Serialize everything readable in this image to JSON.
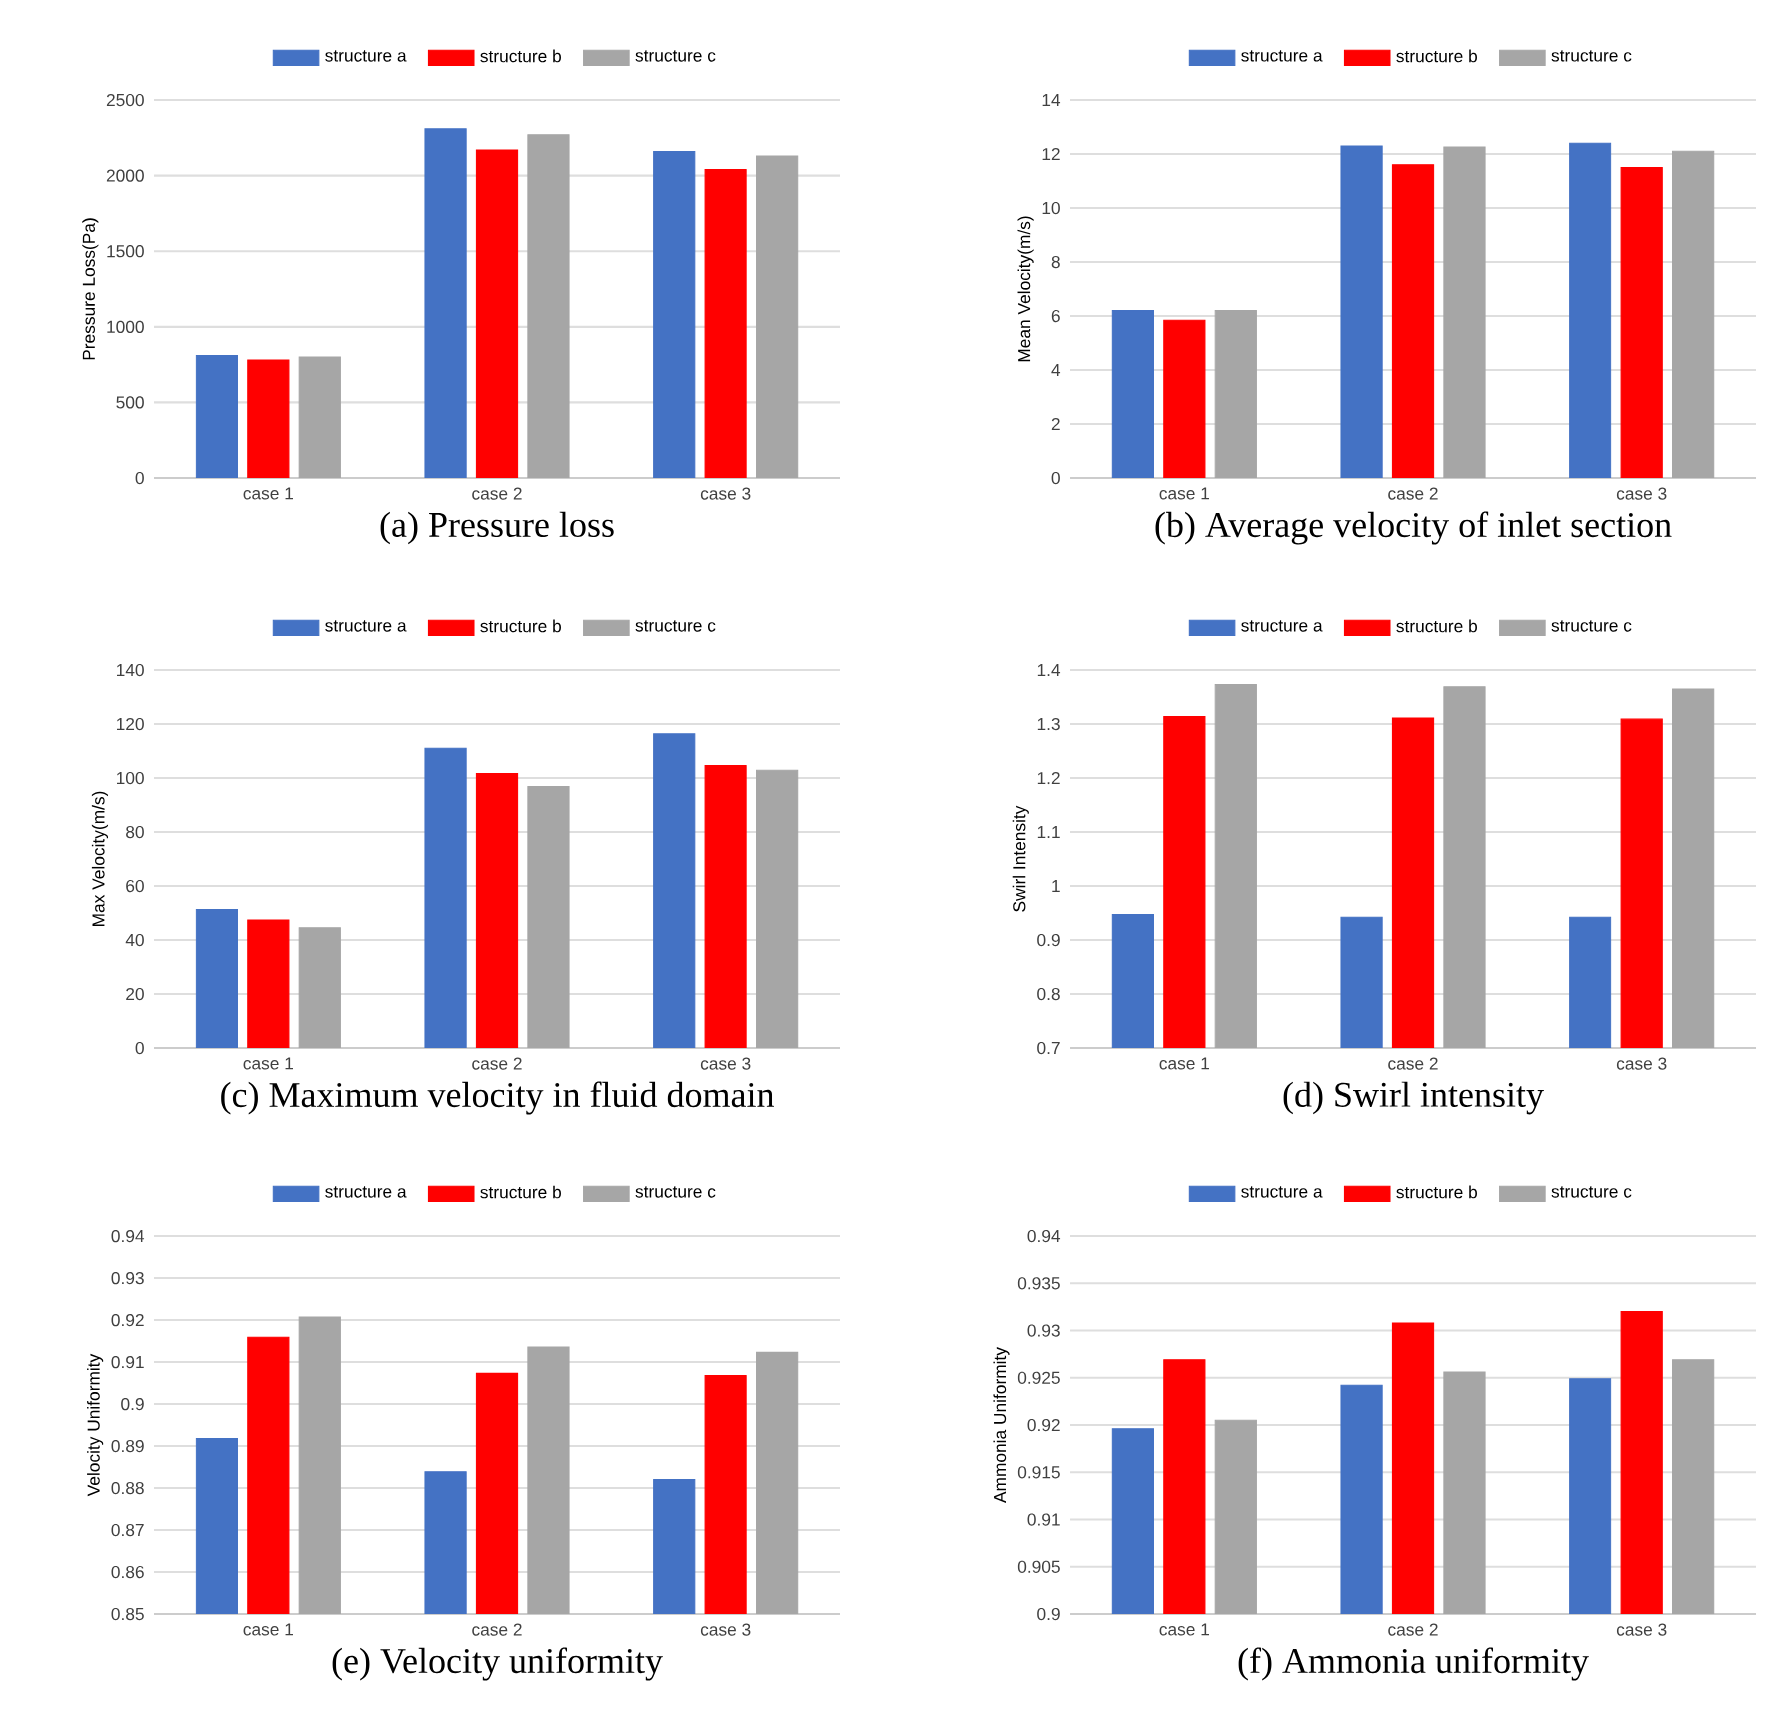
{
  "chart_data": [
    {
      "type": "bar",
      "title": "(a) Pressure loss",
      "ylabel": "Pressure Loss(Pa)",
      "categories": [
        "case 1",
        "case 2",
        "case 3"
      ],
      "series": [
        {
          "name": "structure a",
          "color": "#4472c4",
          "values": [
            810,
            2310,
            2160
          ]
        },
        {
          "name": "structure b",
          "color": "#ff0000",
          "values": [
            780,
            2170,
            2040
          ]
        },
        {
          "name": "structure c",
          "color": "#a6a6a6",
          "values": [
            800,
            2270,
            2130
          ]
        }
      ],
      "ylim": [
        0,
        2500
      ],
      "yticks": [
        0,
        500,
        1000,
        1500,
        2000,
        2500
      ],
      "grid": "y",
      "legend": "top"
    },
    {
      "type": "bar",
      "title": "(b) Average velocity of inlet section",
      "ylabel": "Mean Velocity(m/s)",
      "categories": [
        "case 1",
        "case 2",
        "case 3"
      ],
      "series": [
        {
          "name": "structure a",
          "color": "#4472c4",
          "values": [
            6.2,
            12.3,
            12.4
          ]
        },
        {
          "name": "structure b",
          "color": "#ff0000",
          "values": [
            5.84,
            11.6,
            11.5
          ]
        },
        {
          "name": "structure c",
          "color": "#a6a6a6",
          "values": [
            6.2,
            12.26,
            12.1
          ]
        }
      ],
      "ylim": [
        0,
        14
      ],
      "yticks": [
        0,
        2,
        4,
        6,
        8,
        10,
        12,
        14
      ],
      "grid": "y",
      "legend": "top"
    },
    {
      "type": "bar",
      "title": "(c) Maximum velocity in fluid domain",
      "ylabel": "Max Velocity(m/s)",
      "categories": [
        "case 1",
        "case 2",
        "case 3"
      ],
      "series": [
        {
          "name": "structure a",
          "color": "#4472c4",
          "values": [
            51.3,
            111,
            116.4
          ]
        },
        {
          "name": "structure b",
          "color": "#ff0000",
          "values": [
            47.4,
            101.7,
            104.6
          ]
        },
        {
          "name": "structure c",
          "color": "#a6a6a6",
          "values": [
            44.5,
            96.8,
            102.9
          ]
        }
      ],
      "ylim": [
        0,
        140
      ],
      "yticks": [
        0,
        20,
        40,
        60,
        80,
        100,
        120,
        140
      ],
      "grid": "y",
      "legend": "top"
    },
    {
      "type": "bar",
      "title": "(d) Swirl intensity",
      "ylabel": "Swirl Intensity",
      "categories": [
        "case 1",
        "case 2",
        "case 3"
      ],
      "series": [
        {
          "name": "structure a",
          "color": "#4472c4",
          "values": [
            0.947,
            0.942,
            0.942
          ]
        },
        {
          "name": "structure b",
          "color": "#ff0000",
          "values": [
            1.314,
            1.311,
            1.309
          ]
        },
        {
          "name": "structure c",
          "color": "#a6a6a6",
          "values": [
            1.373,
            1.369,
            1.365
          ]
        }
      ],
      "ylim": [
        0.7,
        1.4
      ],
      "yticks": [
        0.7,
        0.8,
        0.9,
        1,
        1.1,
        1.2,
        1.3,
        1.4
      ],
      "grid": "y",
      "legend": "top"
    },
    {
      "type": "bar",
      "title": "(e) Velocity uniformity",
      "ylabel": "Velocity Uniformity",
      "categories": [
        "case 1",
        "case 2",
        "case 3"
      ],
      "series": [
        {
          "name": "structure a",
          "color": "#4472c4",
          "values": [
            0.8918,
            0.8839,
            0.882
          ]
        },
        {
          "name": "structure b",
          "color": "#ff0000",
          "values": [
            0.9159,
            0.9073,
            0.9068
          ]
        },
        {
          "name": "structure c",
          "color": "#a6a6a6",
          "values": [
            0.9207,
            0.9136,
            0.9123
          ]
        }
      ],
      "ylim": [
        0.85,
        0.94
      ],
      "yticks": [
        0.85,
        0.86,
        0.87,
        0.88,
        0.89,
        0.9,
        0.91,
        0.92,
        0.93,
        0.94
      ],
      "grid": "y",
      "legend": "top"
    },
    {
      "type": "bar",
      "title": "(f) Ammonia uniformity",
      "ylabel": "Ammonia Uniformity",
      "categories": [
        "case 1",
        "case 2",
        "case 3"
      ],
      "series": [
        {
          "name": "structure a",
          "color": "#4472c4",
          "values": [
            0.9196,
            0.9242,
            0.9249
          ]
        },
        {
          "name": "structure b",
          "color": "#ff0000",
          "values": [
            0.9269,
            0.9308,
            0.932
          ]
        },
        {
          "name": "structure c",
          "color": "#a6a6a6",
          "values": [
            0.9205,
            0.9256,
            0.9269
          ]
        }
      ],
      "ylim": [
        0.9,
        0.94
      ],
      "yticks": [
        0.9,
        0.905,
        0.91,
        0.915,
        0.92,
        0.925,
        0.93,
        0.935,
        0.94
      ],
      "grid": "y",
      "legend": "top"
    }
  ]
}
